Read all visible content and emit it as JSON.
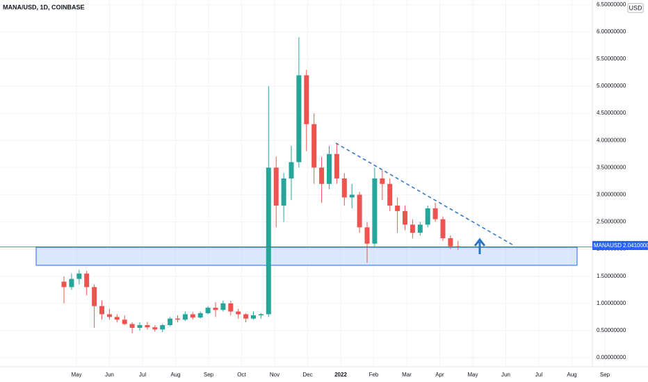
{
  "chart_data": {
    "type": "candlestick",
    "title": "MANA/USD, 1D, COINBASE",
    "currency": "USD",
    "symbol": "MANAUSD",
    "last_price": {
      "value": 2.041,
      "label": "2.04100000"
    },
    "up_color": "#26a69a",
    "down_color": "#ef5350",
    "grid": true,
    "ylim": [
      0,
      6.55
    ],
    "yticks": [
      {
        "value": 0,
        "label": "0.00000000"
      },
      {
        "value": 0.5,
        "label": "0.50000000"
      },
      {
        "value": 1,
        "label": "1.00000000"
      },
      {
        "value": 1.5,
        "label": "1.50000000"
      },
      {
        "value": 2,
        "label": "2.00000000"
      },
      {
        "value": 2.5,
        "label": "2.50000000"
      },
      {
        "value": 3,
        "label": "3.00000000"
      },
      {
        "value": 3.5,
        "label": "3.50000000"
      },
      {
        "value": 4,
        "label": "4.00000000"
      },
      {
        "value": 4.5,
        "label": "4.50000000"
      },
      {
        "value": 5,
        "label": "5.00000000"
      },
      {
        "value": 5.5,
        "label": "5.50000000"
      },
      {
        "value": 6,
        "label": "6.00000000"
      },
      {
        "value": 6.5,
        "label": "6.50000000"
      }
    ],
    "xticks": [
      "May",
      "Jun",
      "Jul",
      "Aug",
      "Sep",
      "Oct",
      "Nov",
      "Dec",
      "2022",
      "Feb",
      "Mar",
      "Apr",
      "May",
      "Jun",
      "Jul",
      "Aug",
      "Sep"
    ],
    "open": [
      1.4,
      1.3,
      1.45,
      1.55,
      1.3,
      0.95,
      0.8,
      0.75,
      0.7,
      0.62,
      0.55,
      0.6,
      0.56,
      0.52,
      0.6,
      0.72,
      0.7,
      0.8,
      0.74,
      0.82,
      0.92,
      0.88,
      1.0,
      0.85,
      0.8,
      0.72,
      0.78,
      0.8,
      3.5,
      2.8,
      3.3,
      3.6,
      5.2,
      4.3,
      3.5,
      3.2,
      3.75,
      3.3,
      2.95,
      3.0,
      2.4,
      2.1,
      3.3,
      3.2,
      2.8,
      2.7,
      2.45,
      2.3,
      2.45,
      2.75,
      2.55,
      2.2,
      2.05
    ],
    "high": [
      1.5,
      1.55,
      1.62,
      1.6,
      1.35,
      1.05,
      0.9,
      0.8,
      0.78,
      0.65,
      0.65,
      0.66,
      0.6,
      0.62,
      0.75,
      0.78,
      0.85,
      0.84,
      0.85,
      0.95,
      1.02,
      1.05,
      1.05,
      0.9,
      0.82,
      0.85,
      0.82,
      5.0,
      3.7,
      3.4,
      3.9,
      5.9,
      5.3,
      4.5,
      3.7,
      3.9,
      3.95,
      3.4,
      3.2,
      3.05,
      2.5,
      3.5,
      3.45,
      3.3,
      2.95,
      2.8,
      2.55,
      2.5,
      2.8,
      2.85,
      2.6,
      2.25,
      2.15
    ],
    "low": [
      1.0,
      1.25,
      1.35,
      1.15,
      0.55,
      0.7,
      0.7,
      0.65,
      0.6,
      0.45,
      0.5,
      0.52,
      0.48,
      0.47,
      0.58,
      0.65,
      0.68,
      0.7,
      0.72,
      0.8,
      0.75,
      0.85,
      0.78,
      0.72,
      0.65,
      0.7,
      0.72,
      0.75,
      2.4,
      2.5,
      2.9,
      3.5,
      3.8,
      3.2,
      2.85,
      3.1,
      3.2,
      2.8,
      2.75,
      2.3,
      1.75,
      2.05,
      2.9,
      2.7,
      2.3,
      2.35,
      2.2,
      2.25,
      2.4,
      2.5,
      2.15,
      2.0,
      1.98
    ],
    "close": [
      1.3,
      1.45,
      1.55,
      1.3,
      0.95,
      0.8,
      0.75,
      0.7,
      0.62,
      0.55,
      0.6,
      0.56,
      0.52,
      0.6,
      0.72,
      0.7,
      0.8,
      0.74,
      0.82,
      0.92,
      0.88,
      1.0,
      0.85,
      0.8,
      0.72,
      0.78,
      0.8,
      3.5,
      2.8,
      3.3,
      3.6,
      5.2,
      4.3,
      3.5,
      3.2,
      3.75,
      3.3,
      2.95,
      3.0,
      2.4,
      2.1,
      3.3,
      3.2,
      2.8,
      2.7,
      2.45,
      2.3,
      2.45,
      2.75,
      2.55,
      2.2,
      2.05,
      2.04
    ]
  }
}
